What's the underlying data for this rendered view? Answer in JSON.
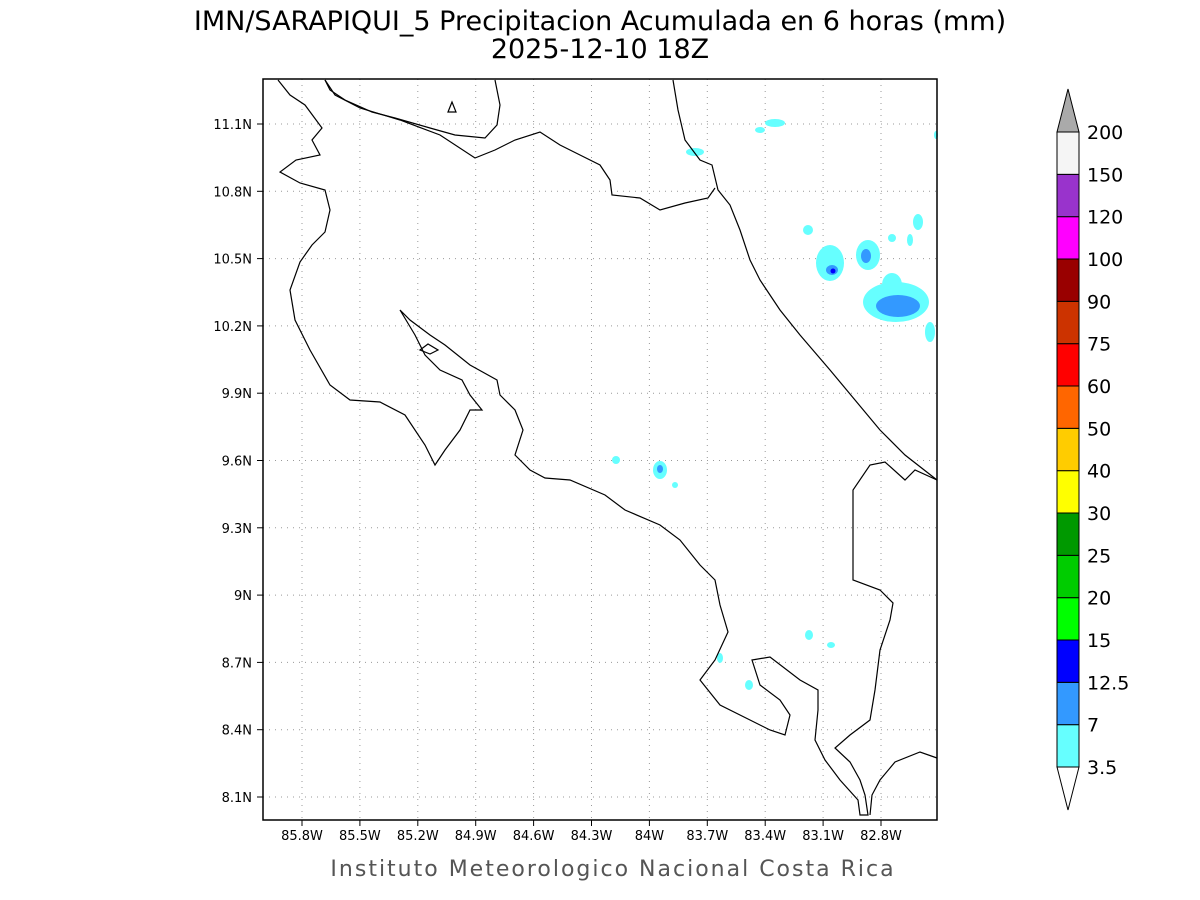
{
  "title": "IMN/SARAPIQUI_5 Precipitacion Acumulada en 6 horas (mm)",
  "subtitle": "2025-12-10 18Z",
  "map": {
    "lon_labels": [
      "85.8W",
      "85.5W",
      "85.2W",
      "84.9W",
      "84.6W",
      "84.3W",
      "84W",
      "83.7W",
      "83.4W",
      "83.1W",
      "82.8W"
    ],
    "lat_labels": [
      "11.1N",
      "10.8N",
      "10.5N",
      "10.2N",
      "9.9N",
      "9.6N",
      "9.3N",
      "9N",
      "8.7N",
      "8.4N",
      "8.1N"
    ]
  },
  "colorbar": {
    "levels": [
      3.5,
      7,
      12.5,
      15,
      20,
      25,
      30,
      40,
      50,
      60,
      75,
      90,
      100,
      120,
      150,
      200
    ],
    "colors": [
      "#66ffff",
      "#3399ff",
      "#0000ff",
      "#00ff00",
      "#00cc00",
      "#009900",
      "#ffff00",
      "#ffcc00",
      "#ff6600",
      "#ff0000",
      "#cc3300",
      "#990000",
      "#ff00ff",
      "#9933cc",
      "#f5f5f5"
    ],
    "under_color": "#ffffff",
    "over_color": "#aaaaaa"
  },
  "footer": "Instituto Meteorologico Nacional Costa Rica"
}
